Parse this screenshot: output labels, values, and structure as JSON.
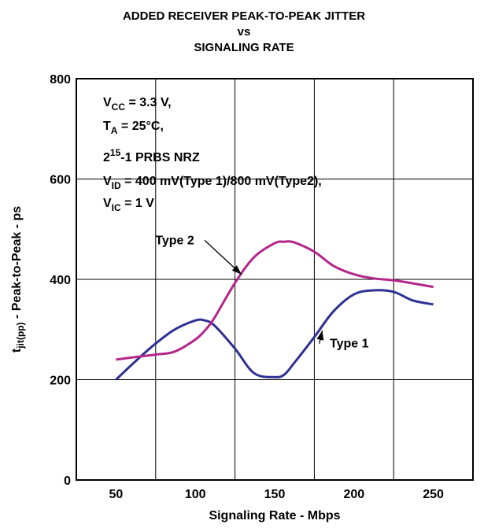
{
  "chart_data": {
    "type": "line",
    "title_lines": [
      "ADDED RECEIVER PEAK-TO-PEAK JITTER",
      "vs",
      "SIGNALING RATE"
    ],
    "xlabel": "Signaling Rate - Mbps",
    "ylabel": {
      "main": "t",
      "sub": "jit(pp)",
      "rest": " - Peak-to-Peak - ps"
    },
    "xlim": [
      25,
      275
    ],
    "ylim": [
      0,
      800
    ],
    "x_ticks": [
      50,
      100,
      150,
      200,
      250
    ],
    "x_tick_labels": [
      "50",
      "100",
      "150",
      "200",
      "250"
    ],
    "y_ticks": [
      0,
      200,
      400,
      600,
      800
    ],
    "y_tick_labels": [
      "0",
      "200",
      "400",
      "600",
      "800"
    ],
    "x_grid": [
      75,
      125,
      175,
      225
    ],
    "y_grid": [
      200,
      400,
      600
    ],
    "annotation_lines": [
      {
        "id": "vcc",
        "parts": [
          {
            "t": "V",
            "s": "n"
          },
          {
            "t": "CC",
            "s": "sub"
          },
          {
            "t": " = 3.3 V,",
            "s": "n"
          }
        ]
      },
      {
        "id": "ta",
        "parts": [
          {
            "t": "T",
            "s": "n"
          },
          {
            "t": "A",
            "s": "sub"
          },
          {
            "t": " = 25°C,",
            "s": "n"
          }
        ]
      },
      {
        "id": "prbs",
        "parts": [
          {
            "t": "2",
            "s": "n"
          },
          {
            "t": "15",
            "s": "sup"
          },
          {
            "t": "-1 PRBS NRZ",
            "s": "n"
          }
        ]
      },
      {
        "id": "vid",
        "parts": [
          {
            "t": "V",
            "s": "n"
          },
          {
            "t": "ID",
            "s": "sub"
          },
          {
            "t": " = 400 mV(Type 1)/800 mV(Type2),",
            "s": "n"
          }
        ]
      },
      {
        "id": "vic",
        "parts": [
          {
            "t": "V",
            "s": "n"
          },
          {
            "t": "IC",
            "s": "sub"
          },
          {
            "t": " = 1 V",
            "s": "n"
          }
        ]
      }
    ],
    "series": [
      {
        "name": "Type 1",
        "color": "#2e3192",
        "x": [
          50,
          62,
          75,
          87,
          100,
          106,
          112,
          125,
          137,
          150,
          156,
          162,
          175,
          187,
          200,
          212,
          225,
          237,
          250
        ],
        "y": [
          200,
          236,
          272,
          300,
          318,
          318,
          308,
          262,
          213,
          205,
          210,
          232,
          285,
          336,
          370,
          378,
          375,
          358,
          350
        ]
      },
      {
        "name": "Type 2",
        "color": "#b3268a",
        "x": [
          50,
          62,
          75,
          87,
          100,
          106,
          112,
          125,
          137,
          150,
          156,
          162,
          175,
          187,
          200,
          212,
          225,
          237,
          250
        ],
        "y": [
          240,
          245,
          250,
          256,
          280,
          298,
          323,
          393,
          444,
          472,
          475,
          474,
          455,
          427,
          410,
          402,
          398,
          392,
          385
        ]
      }
    ],
    "series_labels": [
      {
        "text": "Type 2",
        "for": "Type 2",
        "anchor_x": 87,
        "anchor_y": 470,
        "arrow_x": 129,
        "arrow_y": 410
      },
      {
        "text": "Type 1",
        "for": "Type 1",
        "anchor_x": 197,
        "anchor_y": 264,
        "arrow_x": 180,
        "arrow_y": 298
      }
    ]
  }
}
